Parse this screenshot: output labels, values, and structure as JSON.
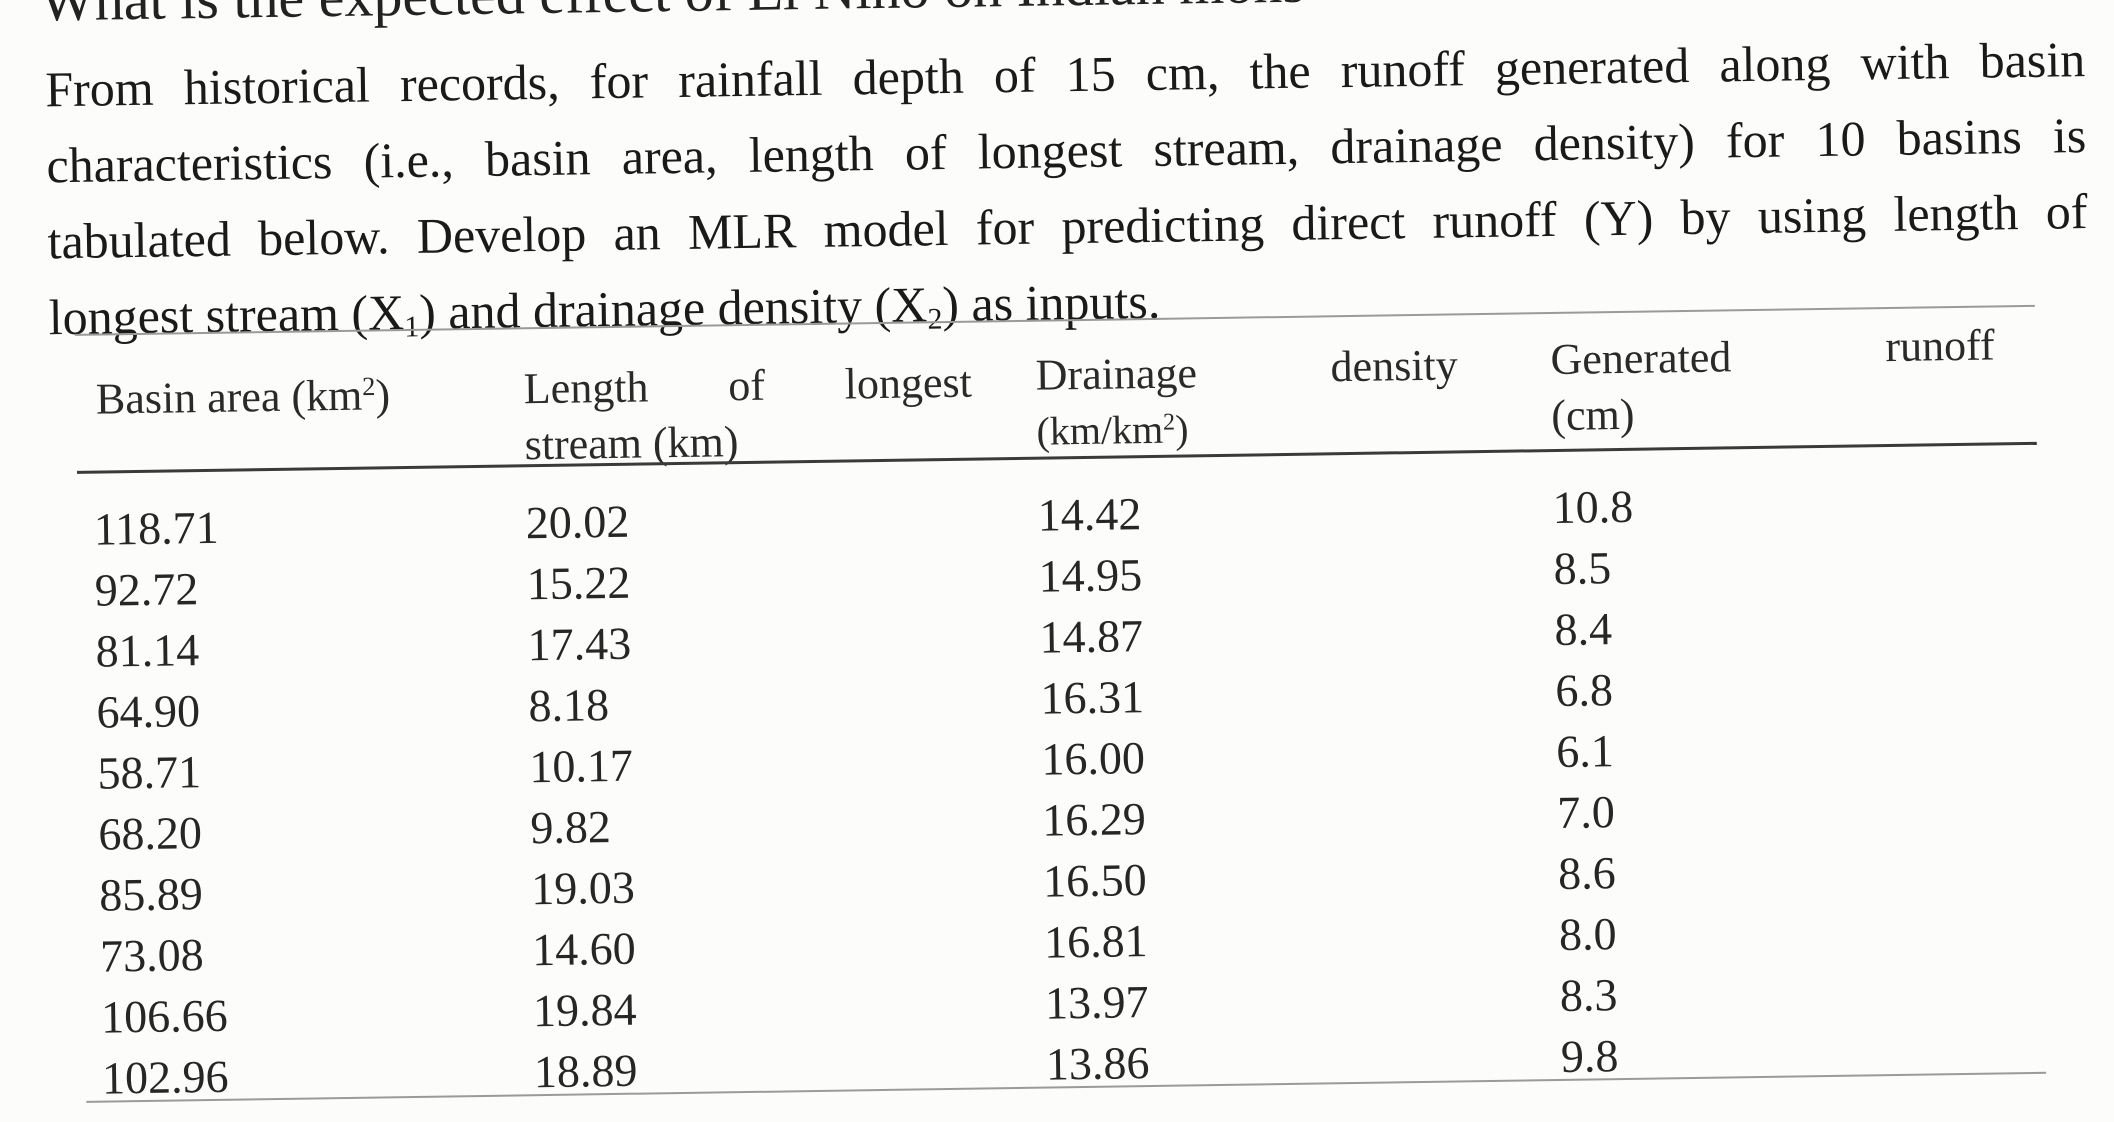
{
  "cut_off_line": "What is the expected effect of El Niño on Indian mons",
  "paragraph": {
    "line1": "From historical records, for rainfall depth of 15 cm, the runoff generated along with basin",
    "line2": "characteristics (i.e., basin area, length of longest stream, drainage density) for 10 basins is",
    "line3": "tabulated below. Develop an MLR model for predicting direct runoff (Y) by using length of",
    "line4_pre": "longest stream (X",
    "line4_sub1": "1",
    "line4_mid": ") and drainage density (X",
    "line4_sub2": "2",
    "line4_post": ") as inputs."
  },
  "table": {
    "headers": {
      "basin_area": "Basin area (km",
      "basin_area_sup": "2",
      "basin_area_close": ")",
      "length_l1": "Length of longest",
      "length_l2": "stream (km)",
      "drainage_l1": "Drainage",
      "drainage_l2a": "(km/km",
      "drainage_l2_sup": "2",
      "drainage_l2b": ")",
      "density_word": "density",
      "generated_l1": "Generated",
      "runoff_word": "runoff",
      "generated_l2": "(cm)"
    },
    "rows": [
      {
        "basin_area": "118.71",
        "length": "20.02",
        "drainage": "14.42",
        "runoff": "10.8"
      },
      {
        "basin_area": "92.72",
        "length": "15.22",
        "drainage": "14.95",
        "runoff": "8.5"
      },
      {
        "basin_area": "81.14",
        "length": "17.43",
        "drainage": "14.87",
        "runoff": "8.4"
      },
      {
        "basin_area": "64.90",
        "length": "8.18",
        "drainage": "16.31",
        "runoff": "6.8"
      },
      {
        "basin_area": "58.71",
        "length": "10.17",
        "drainage": "16.00",
        "runoff": "6.1"
      },
      {
        "basin_area": "68.20",
        "length": "9.82",
        "drainage": "16.29",
        "runoff": "7.0"
      },
      {
        "basin_area": "85.89",
        "length": "19.03",
        "drainage": "16.50",
        "runoff": "8.6"
      },
      {
        "basin_area": "73.08",
        "length": "14.60",
        "drainage": "16.81",
        "runoff": "8.0"
      },
      {
        "basin_area": "106.66",
        "length": "19.84",
        "drainage": "13.97",
        "runoff": "8.3"
      },
      {
        "basin_area": "102.96",
        "length": "18.89",
        "drainage": "13.86",
        "runoff": "9.8"
      }
    ]
  }
}
